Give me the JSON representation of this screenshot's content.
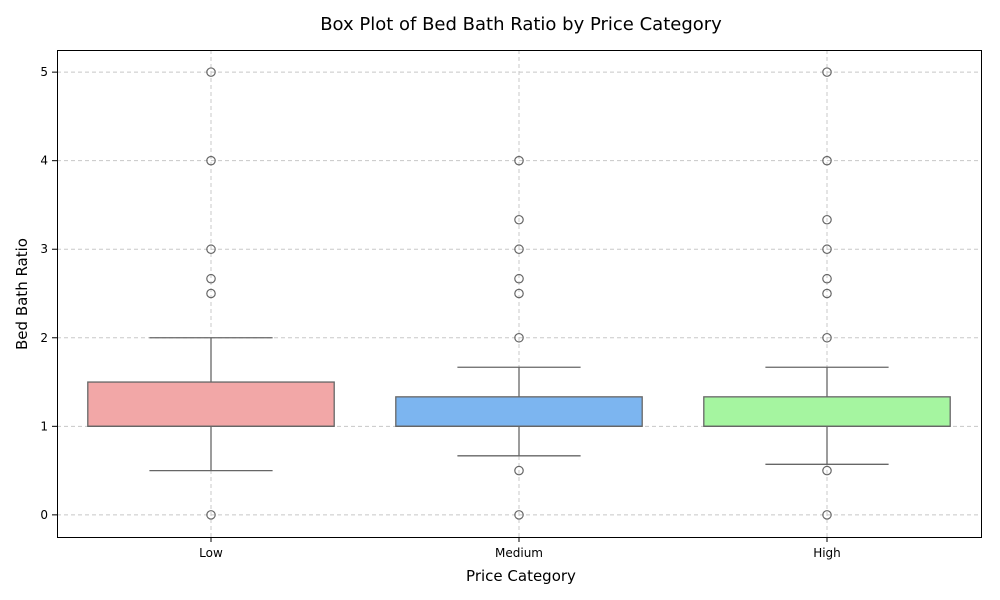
{
  "chart_data": {
    "type": "box",
    "title": "Box Plot of Bed Bath Ratio by Price Category",
    "xlabel": "Price Category",
    "ylabel": "Bed Bath Ratio",
    "categories": [
      "Low",
      "Medium",
      "High"
    ],
    "y_ticks": [
      "0",
      "1",
      "2",
      "3",
      "4",
      "5"
    ],
    "ylim": [
      -0.25,
      5.25
    ],
    "grid": true,
    "colors": [
      "#f2a7a7",
      "#7cb5f0",
      "#a5f5a0"
    ],
    "edge_color": "#666666",
    "boxes": [
      {
        "category": "Low",
        "whisker_low": 0.5,
        "q1": 1.0,
        "median": 1.0,
        "q3": 1.5,
        "whisker_high": 2.0,
        "outliers": [
          0.0,
          2.5,
          2.667,
          3.0,
          4.0,
          5.0
        ]
      },
      {
        "category": "Medium",
        "whisker_low": 0.667,
        "q1": 1.0,
        "median": 1.0,
        "q3": 1.333,
        "whisker_high": 1.667,
        "outliers": [
          0.0,
          0.5,
          2.0,
          2.5,
          2.667,
          3.0,
          3.333,
          4.0
        ]
      },
      {
        "category": "High",
        "whisker_low": 0.571,
        "q1": 1.0,
        "median": 1.0,
        "q3": 1.333,
        "whisker_high": 1.667,
        "outliers": [
          0.0,
          0.5,
          2.0,
          2.5,
          2.667,
          3.0,
          3.333,
          4.0,
          5.0
        ]
      }
    ]
  }
}
